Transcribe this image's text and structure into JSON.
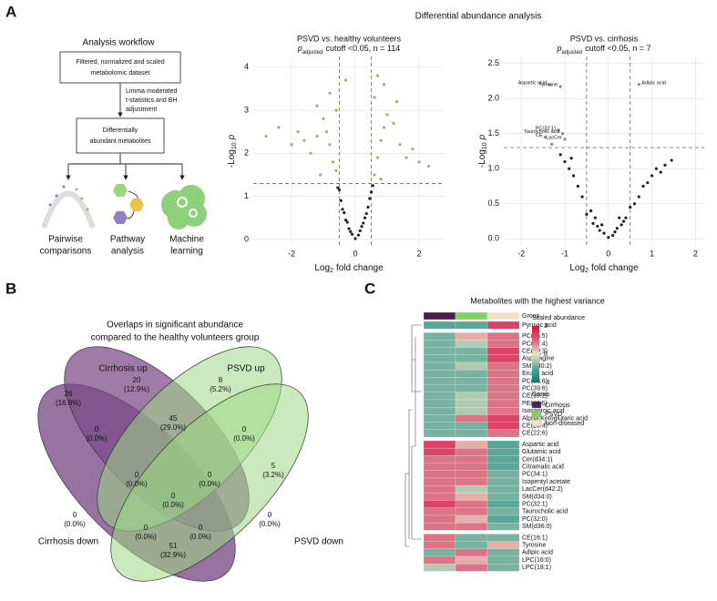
{
  "panel_labels": [
    "A",
    "B",
    "C"
  ],
  "figure_title": "Differential abundance analysis",
  "workflow": {
    "title": "Analysis workflow",
    "box1": [
      "Filtered, normalized and scaled",
      "metabolomic dataset"
    ],
    "step": [
      "Limma moderated",
      "t-statistics and BH",
      "adjustment"
    ],
    "box2": [
      "Differentially",
      "abundant metabolites"
    ],
    "outputs": [
      [
        "Pairwise",
        "comparisons"
      ],
      [
        "Pathway",
        "analysis"
      ],
      [
        "Machine",
        "learning"
      ]
    ]
  },
  "chart_data": [
    {
      "type": "scatter",
      "title": "PSVD vs. healthy volunteers",
      "subtitle": [
        "p",
        "adjusted",
        "cutoff <0.05, n = 114"
      ],
      "x_label": [
        "Log",
        "2",
        "fold change"
      ],
      "y_label": [
        "-Log",
        "10",
        "p"
      ],
      "x": [
        0.0,
        0.1,
        -0.1,
        0.2,
        -0.2,
        0.3,
        -0.3,
        0.4,
        -0.4,
        0.45,
        -0.45,
        0.15,
        -0.15,
        0.35,
        -0.35,
        0.5,
        -0.5,
        -0.25,
        0.25,
        0.55,
        -0.55,
        0.6,
        -0.6,
        0.7,
        -0.7,
        0.8,
        -0.8,
        0.9,
        -0.9,
        1.0,
        -1.0,
        1.2,
        -1.2,
        1.4,
        -1.4,
        1.6,
        -1.6,
        1.8,
        -1.8,
        2.0,
        -2.0,
        2.3,
        -2.4,
        -2.8,
        0.6,
        -0.8,
        0.9,
        -1.2,
        0.7,
        -0.6,
        -1.1,
        0.8,
        1.3,
        -0.3
      ],
      "values": [
        0.02,
        0.1,
        0.12,
        0.3,
        0.25,
        0.5,
        0.45,
        0.75,
        0.7,
        0.95,
        0.9,
        0.2,
        0.18,
        0.6,
        0.62,
        1.1,
        1.15,
        0.4,
        0.38,
        1.25,
        1.2,
        1.5,
        1.6,
        1.9,
        1.8,
        2.3,
        2.2,
        2.6,
        2.5,
        2.9,
        2.8,
        2.7,
        2.4,
        2.2,
        2.0,
        1.9,
        2.3,
        2.1,
        2.5,
        1.8,
        2.2,
        1.7,
        2.6,
        2.4,
        3.3,
        3.4,
        3.6,
        3.1,
        3.8,
        3.0,
        1.5,
        1.4,
        3.2,
        3.7
      ],
      "color": "#222222",
      "sig_color": "#8fb86f",
      "xlim": [
        -3.2,
        2.8
      ],
      "ylim": [
        -0.15,
        4.25
      ],
      "xticks": [
        -2,
        0,
        2
      ],
      "yticks": [
        0,
        1,
        2,
        3,
        4
      ],
      "vlines": [
        -0.5,
        0.5
      ],
      "hline": 1.3,
      "grid": true
    },
    {
      "type": "scatter",
      "title": "PSVD vs. cirrhosis",
      "subtitle": [
        "p",
        "adjusted",
        "cutoff <0.05, n = 7"
      ],
      "x_label": [
        "Log",
        "2",
        "fold change"
      ],
      "y_label": [
        "-Log",
        "10",
        "p"
      ],
      "x": [
        0.0,
        0.1,
        -0.1,
        0.2,
        -0.2,
        0.3,
        -0.3,
        0.4,
        -0.4,
        0.5,
        -0.5,
        0.6,
        -0.6,
        0.7,
        -0.7,
        0.8,
        -0.8,
        0.9,
        -0.9,
        1.0,
        -1.0,
        1.1,
        -1.1,
        1.2,
        1.3,
        1.45,
        -1.3,
        -0.85,
        -0.15,
        0.15,
        0.35,
        -0.35,
        0.25,
        -0.25,
        -1.35,
        -1.1,
        0.7,
        -1.15,
        -1.05,
        -1.45,
        -1.0
      ],
      "values": [
        0.02,
        0.05,
        0.08,
        0.15,
        0.12,
        0.2,
        0.3,
        0.3,
        0.4,
        0.45,
        0.35,
        0.5,
        0.6,
        0.6,
        0.75,
        0.75,
        0.9,
        0.8,
        1.0,
        0.9,
        1.1,
        1.0,
        1.2,
        0.95,
        1.05,
        1.12,
        1.35,
        1.15,
        0.2,
        0.1,
        0.25,
        0.22,
        0.3,
        0.18,
        2.2,
        2.17,
        2.2,
        1.55,
        1.5,
        1.45,
        1.42
      ],
      "point_labels": [
        null,
        null,
        null,
        null,
        null,
        null,
        null,
        null,
        null,
        null,
        null,
        null,
        null,
        null,
        null,
        null,
        null,
        null,
        null,
        null,
        null,
        null,
        null,
        null,
        null,
        null,
        null,
        null,
        null,
        null,
        null,
        null,
        null,
        null,
        "Aspartic acid",
        "Tyrosine",
        "Adipic acid",
        "PC(32:1)",
        "Taurocholic acid",
        "CE",
        "LacCer"
      ],
      "color": "#222222",
      "sig_color": "#8a8a8a",
      "xlim": [
        -2.4,
        2.2
      ],
      "ylim": [
        -0.1,
        2.6
      ],
      "xticks": [
        -2,
        -1,
        0,
        1,
        2
      ],
      "yticks": [
        {
          "value": 0,
          "label": "0.0"
        },
        0.5,
        {
          "value": 1,
          "label": "1.0"
        },
        1.5,
        {
          "value": 2,
          "label": "2.0"
        },
        2.5
      ],
      "vlines": [
        -0.5,
        0.5
      ],
      "hline": 1.3,
      "grid": true
    },
    {
      "type": "heatmap",
      "title": "Metabolites with the highest variance",
      "group_label": "Group",
      "columns": [
        "Cirrhosis",
        "PSVD",
        "Non-diseased"
      ],
      "column_colors": [
        "#4b1f50",
        "#7fd35f",
        "#ede3c4"
      ],
      "rows": [
        "Pyruvic acid",
        "PC(36:5)",
        "PC(37:4)",
        "CE(20:3)",
        "Asparagine",
        "SM(d40:2)",
        "Erucic acid",
        "PC(38:6)",
        "PC(39:6)",
        "CE(18:2)",
        "PE(42:6)",
        "Isocaproic acid",
        "Alpha-Ketoglutaric acid",
        "CE(20:4)",
        "CE(22:6)",
        "Aspartic acid",
        "Glutamic acid",
        "Cer(d34:1)",
        "Citramalic acid",
        "PC(34:1)",
        "Isopentyl acetate",
        "LacCer(d42:2)",
        "SM(d34:0)",
        "PC(32:1)",
        "Taurocholic acid",
        "PC(32:0)",
        "SM(d36:0)",
        "CE(16:1)",
        "Tyrosine",
        "Adipic acid",
        "LPC(16:0)",
        "LPC(18:1)"
      ],
      "values": [
        [
          -1.5,
          -1.5,
          2
        ],
        [
          -1.2,
          0.6,
          1.3
        ],
        [
          -1.2,
          -0.6,
          1.3
        ],
        [
          -1.2,
          -1.2,
          2
        ],
        [
          -1.2,
          -1.2,
          2
        ],
        [
          -1.2,
          -0.6,
          1.3
        ],
        [
          -1.2,
          -1.2,
          1.3
        ],
        [
          -1.2,
          -1.2,
          1.3
        ],
        [
          -1.2,
          -1.2,
          1.3
        ],
        [
          -1.2,
          -0.6,
          1.3
        ],
        [
          -1.2,
          -0.6,
          1.3
        ],
        [
          -1.2,
          -0.6,
          1.3
        ],
        [
          -1.2,
          1.3,
          2
        ],
        [
          -1.2,
          -1.2,
          2
        ],
        [
          -1.2,
          -1.2,
          1.3
        ],
        [
          2,
          0.6,
          -1.5
        ],
        [
          2,
          1.3,
          -1.5
        ],
        [
          1.3,
          1.3,
          -1.5
        ],
        [
          1.3,
          1.3,
          -1.5
        ],
        [
          1.3,
          1.3,
          -1.2
        ],
        [
          1.3,
          1.3,
          -1.2
        ],
        [
          1.3,
          -0.6,
          -1.2
        ],
        [
          1.3,
          0.6,
          -1.2
        ],
        [
          2,
          1.3,
          -1.5
        ],
        [
          1.3,
          1.3,
          -1.2
        ],
        [
          1.3,
          0.6,
          -1.5
        ],
        [
          1.3,
          1.3,
          -1.2
        ],
        [
          1.3,
          -1.2,
          -1.2
        ],
        [
          1.3,
          -1.2,
          0.6
        ],
        [
          -1.2,
          1.3,
          -1.2
        ],
        [
          1.3,
          0.6,
          -1.2
        ],
        [
          -0.6,
          1.3,
          -1.2
        ]
      ],
      "color_range": [
        -3,
        3
      ],
      "colors": [
        "#007a74",
        "#5aa797",
        "#ebe2c6",
        "#d9637c",
        "#e0073e"
      ],
      "colorbar_title": "Scaled abundance",
      "colorbar_ticks": [
        3,
        0,
        -3
      ],
      "legend_title": "Group"
    }
  ],
  "venn": {
    "title": [
      "Overlaps in significant abundance",
      "compared to the healthy volunteers group"
    ],
    "sets": [
      {
        "name": "Cirrhosis down",
        "color": "#6e3d7c"
      },
      {
        "name": "Cirrhosis up",
        "color": "#7a4a87"
      },
      {
        "name": "PSVD up",
        "color": "#9fd987"
      },
      {
        "name": "PSVD down",
        "color": "#9fd987"
      }
    ],
    "regions": [
      {
        "count": 26,
        "percent": "(16.8%)"
      },
      {
        "count": 20,
        "percent": "(12.9%)"
      },
      {
        "count": 8,
        "percent": "(5.2%)"
      },
      {
        "count": 5,
        "percent": "(3.2%)"
      },
      {
        "count": 0,
        "percent": "(0.0%)"
      },
      {
        "count": 45,
        "percent": "(29.0%)"
      },
      {
        "count": 0,
        "percent": "(0.0%)"
      },
      {
        "count": 0,
        "percent": "(0.0%)"
      },
      {
        "count": 0,
        "percent": "(0.0%)"
      },
      {
        "count": 0,
        "percent": "(0.0%)"
      },
      {
        "count": 0,
        "percent": "(0.0%)"
      },
      {
        "count": 0,
        "percent": "(0.0%)"
      },
      {
        "count": 0,
        "percent": "(0.0%)"
      },
      {
        "count": 0,
        "percent": "(0.0%)"
      },
      {
        "count": 51,
        "percent": "(32.9%)"
      }
    ]
  }
}
